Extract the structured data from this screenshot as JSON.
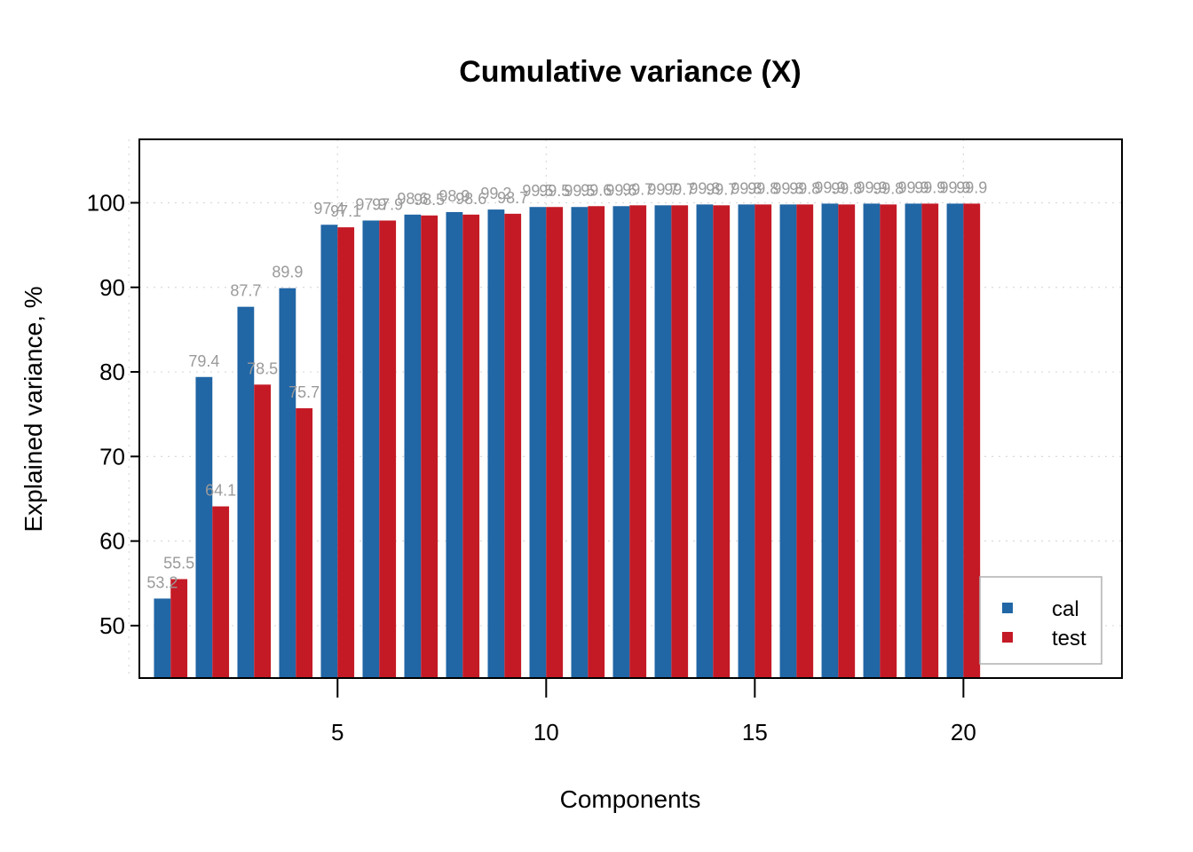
{
  "chart_data": {
    "type": "bar",
    "title": "Cumulative variance (X)",
    "xlabel": "Components",
    "ylabel": "Explained variance, %",
    "x": [
      1,
      2,
      3,
      4,
      5,
      6,
      7,
      8,
      9,
      10,
      11,
      12,
      13,
      14,
      15,
      16,
      17,
      18,
      19,
      20
    ],
    "xticks": [
      5,
      10,
      15,
      20
    ],
    "yticks": [
      50,
      60,
      70,
      80,
      90,
      100
    ],
    "xlim": [
      0.25,
      23.8
    ],
    "ylim": [
      43.8,
      107.5
    ],
    "grid": true,
    "legend_position": "bottom-right",
    "series": [
      {
        "name": "cal",
        "color": "#2166a5",
        "values": [
          53.2,
          79.4,
          87.7,
          89.9,
          97.4,
          97.9,
          98.6,
          98.9,
          99.2,
          99.5,
          99.5,
          99.6,
          99.7,
          99.8,
          99.8,
          99.8,
          99.9,
          99.9,
          99.9,
          99.9
        ]
      },
      {
        "name": "test",
        "color": "#c41a26",
        "values": [
          55.5,
          64.1,
          78.5,
          75.7,
          97.1,
          97.9,
          98.5,
          98.6,
          98.7,
          99.5,
          99.6,
          99.7,
          99.7,
          99.7,
          99.8,
          99.8,
          99.8,
          99.8,
          99.9,
          99.9
        ]
      }
    ]
  }
}
